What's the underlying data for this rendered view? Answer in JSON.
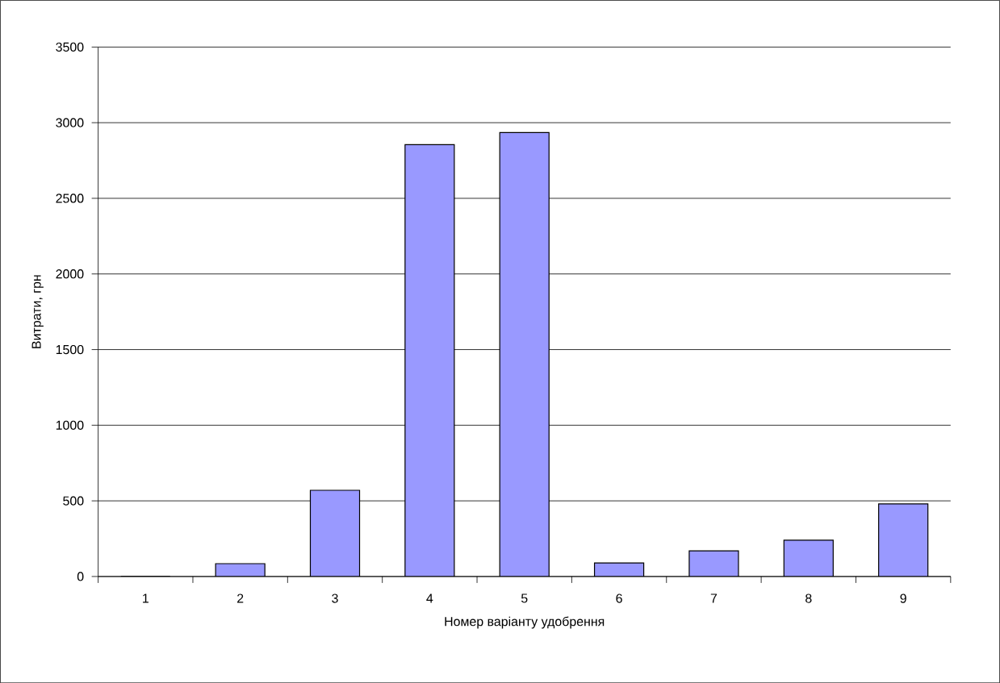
{
  "chart_data": {
    "type": "bar",
    "xlabel": "Номер варіанту удобрення",
    "ylabel": "Витрати, грн",
    "categories": [
      "1",
      "2",
      "3",
      "4",
      "5",
      "6",
      "7",
      "8",
      "9"
    ],
    "values": [
      0,
      85,
      570,
      2855,
      2935,
      90,
      170,
      240,
      480
    ],
    "color": "#9999ff",
    "ylim": [
      0,
      3500
    ],
    "yticks": [
      0,
      500,
      1000,
      1500,
      2000,
      2500,
      3000,
      3500
    ],
    "grid": "y"
  }
}
